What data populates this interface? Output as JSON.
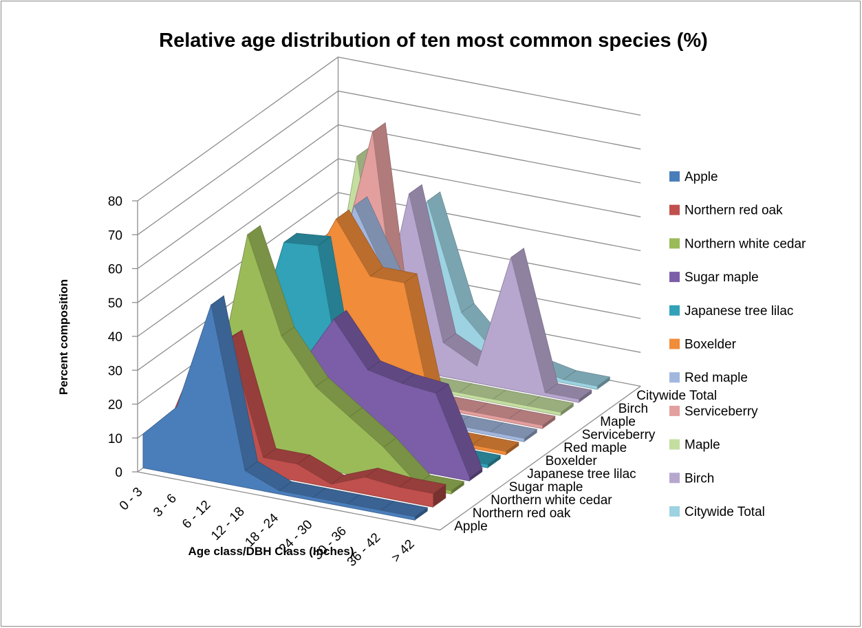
{
  "colors": {
    "Apple": "#4a7ebb",
    "Northern red oak": "#c0504d",
    "Northern white cedar": "#9bbb59",
    "Sugar maple": "#7b5ea7",
    "Japanese tree lilac": "#31a2b8",
    "Boxelder": "#f08c3a",
    "Red maple": "#a2b7de",
    "Serviceberry": "#e39e9e",
    "Maple": "#c4dea0",
    "Birch": "#b7a7cf",
    "Citywide Total": "#9cd2e1"
  },
  "chart_data": {
    "type": "area",
    "title": "Relative age distribution of ten most common species (%)",
    "xlabel": "Age class/DBH Class (Inches)",
    "ylabel": "Percent composition",
    "ylim": [
      0,
      80
    ],
    "yticks": [
      0,
      10,
      20,
      30,
      40,
      50,
      60,
      70,
      80
    ],
    "categories": [
      "0 - 3",
      "3 - 6",
      "6 - 12",
      "12 - 18",
      "18 - 24",
      "24 - 30",
      "30 - 36",
      "36 - 42",
      "> 42"
    ],
    "series": [
      {
        "name": "Apple",
        "values": [
          10,
          20,
          52,
          5,
          1,
          1,
          1,
          1,
          1
        ]
      },
      {
        "name": "Northern red oak",
        "values": [
          4,
          30,
          38,
          5,
          5,
          1,
          5,
          4,
          4
        ]
      },
      {
        "name": "Northern white cedar",
        "values": [
          2,
          15,
          65,
          37,
          24,
          17,
          10,
          1,
          1
        ]
      },
      {
        "name": "Sugar maple",
        "values": [
          1,
          1,
          5,
          24,
          40,
          27,
          25,
          24,
          1
        ]
      },
      {
        "name": "Japanese tree lilac",
        "values": [
          1,
          20,
          55,
          56,
          1,
          1,
          1,
          1,
          1
        ]
      },
      {
        "name": "Boxelder",
        "values": [
          0,
          5,
          40,
          60,
          45,
          45,
          1,
          1,
          1
        ]
      },
      {
        "name": "Red maple",
        "values": [
          1,
          5,
          25,
          60,
          40,
          1,
          1,
          1,
          1
        ]
      },
      {
        "name": "Serviceberry",
        "values": [
          1,
          10,
          37,
          78,
          1,
          1,
          1,
          1,
          1
        ]
      },
      {
        "name": "Maple",
        "values": [
          1,
          5,
          65,
          1,
          1,
          1,
          1,
          1,
          1
        ]
      },
      {
        "name": "Birch",
        "values": [
          0,
          5,
          5,
          52,
          10,
          5,
          39,
          1,
          1
        ]
      },
      {
        "name": "Citywide Total",
        "values": [
          1,
          5,
          18,
          46,
          15,
          5,
          3,
          1,
          1
        ]
      }
    ],
    "depth_labels": [
      "Apple",
      "Northern red oak",
      "Northern white cedar",
      "Sugar maple",
      "Japanese tree lilac",
      "Boxelder",
      "Red maple",
      "Serviceberry",
      "Maple",
      "Birch",
      "Citywide Total"
    ],
    "legend": {
      "position": "right",
      "entries": [
        "Apple",
        "Northern red oak",
        "Northern white cedar",
        "Sugar maple",
        "Japanese tree lilac",
        "Boxelder",
        "Red maple",
        "Serviceberry",
        "Maple",
        "Birch",
        "Citywide Total"
      ]
    },
    "grid": true
  }
}
